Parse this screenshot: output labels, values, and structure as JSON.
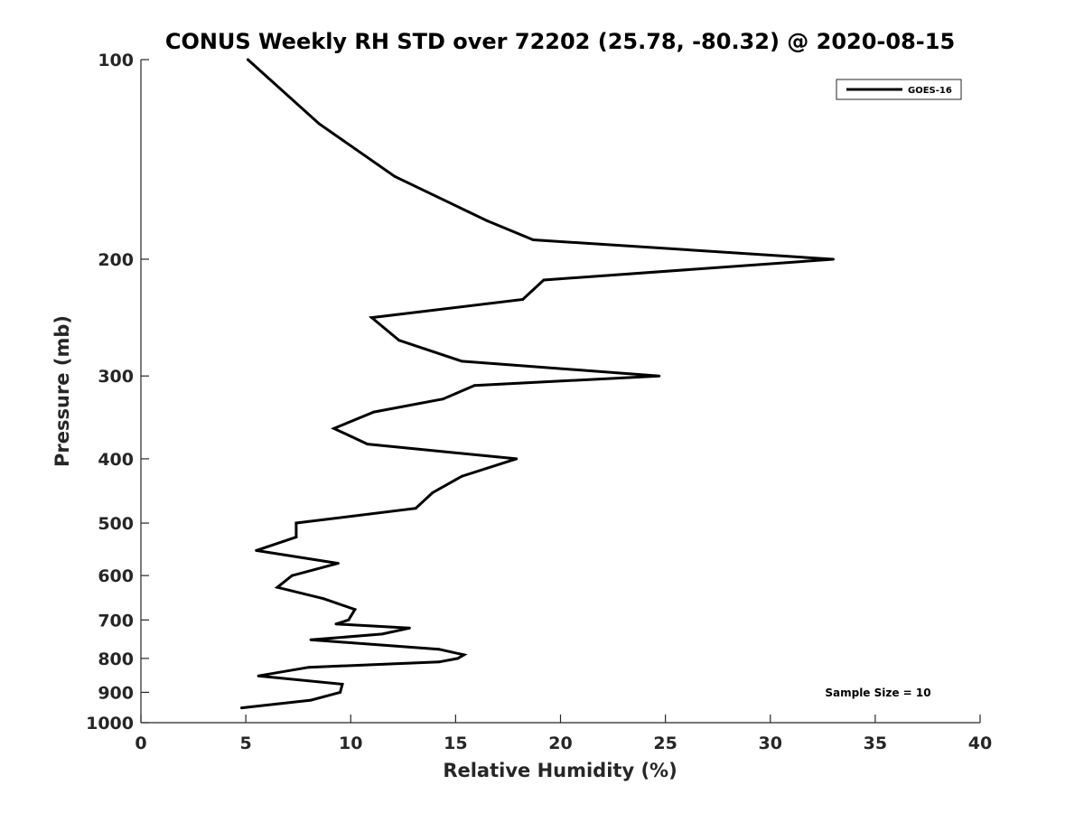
{
  "chart_data": {
    "type": "line",
    "title": "CONUS Weekly RH STD over 72202 (25.78, -80.32) @ 2020-08-15",
    "xlabel": "Relative Humidity (%)",
    "ylabel": "Pressure (mb)",
    "xlim": [
      0,
      40
    ],
    "ylim": [
      100,
      1000
    ],
    "yscale": "log",
    "yaxis_reversed": true,
    "xticks": [
      0,
      5,
      10,
      15,
      20,
      25,
      30,
      35,
      40
    ],
    "xtick_labels": [
      "0",
      "5",
      "10",
      "15",
      "20",
      "25",
      "30",
      "35",
      "40"
    ],
    "yticks": [
      100,
      200,
      300,
      400,
      500,
      600,
      700,
      800,
      900,
      1000
    ],
    "ytick_labels": [
      "100",
      "200",
      "300",
      "400",
      "500",
      "600",
      "700",
      "800",
      "900",
      "1000"
    ],
    "grid": false,
    "legend_position": "top-right",
    "series": [
      {
        "name": "GOES-16",
        "color": "#000000",
        "points": [
          [
            5.1,
            100
          ],
          [
            8.5,
            125
          ],
          [
            12.1,
            150
          ],
          [
            16.5,
            175
          ],
          [
            18.7,
            187
          ],
          [
            33.0,
            200
          ],
          [
            19.2,
            215
          ],
          [
            18.2,
            230
          ],
          [
            11.0,
            245
          ],
          [
            12.3,
            265
          ],
          [
            15.3,
            285
          ],
          [
            24.7,
            300
          ],
          [
            15.9,
            310
          ],
          [
            14.4,
            325
          ],
          [
            11.1,
            340
          ],
          [
            9.2,
            360
          ],
          [
            10.8,
            380
          ],
          [
            17.9,
            400
          ],
          [
            15.3,
            425
          ],
          [
            13.9,
            450
          ],
          [
            13.1,
            475
          ],
          [
            7.4,
            500
          ],
          [
            7.4,
            525
          ],
          [
            5.5,
            550
          ],
          [
            9.4,
            575
          ],
          [
            7.2,
            600
          ],
          [
            6.5,
            625
          ],
          [
            8.7,
            650
          ],
          [
            10.2,
            675
          ],
          [
            9.9,
            700
          ],
          [
            9.3,
            710
          ],
          [
            12.8,
            720
          ],
          [
            11.5,
            735
          ],
          [
            8.1,
            750
          ],
          [
            14.2,
            775
          ],
          [
            15.4,
            790
          ],
          [
            15.1,
            800
          ],
          [
            14.2,
            810
          ],
          [
            8.0,
            825
          ],
          [
            5.6,
            850
          ],
          [
            9.6,
            875
          ],
          [
            9.5,
            900
          ],
          [
            8.1,
            925
          ],
          [
            4.8,
            950
          ]
        ]
      }
    ],
    "annotations": [
      "Sample Size = 10"
    ]
  }
}
